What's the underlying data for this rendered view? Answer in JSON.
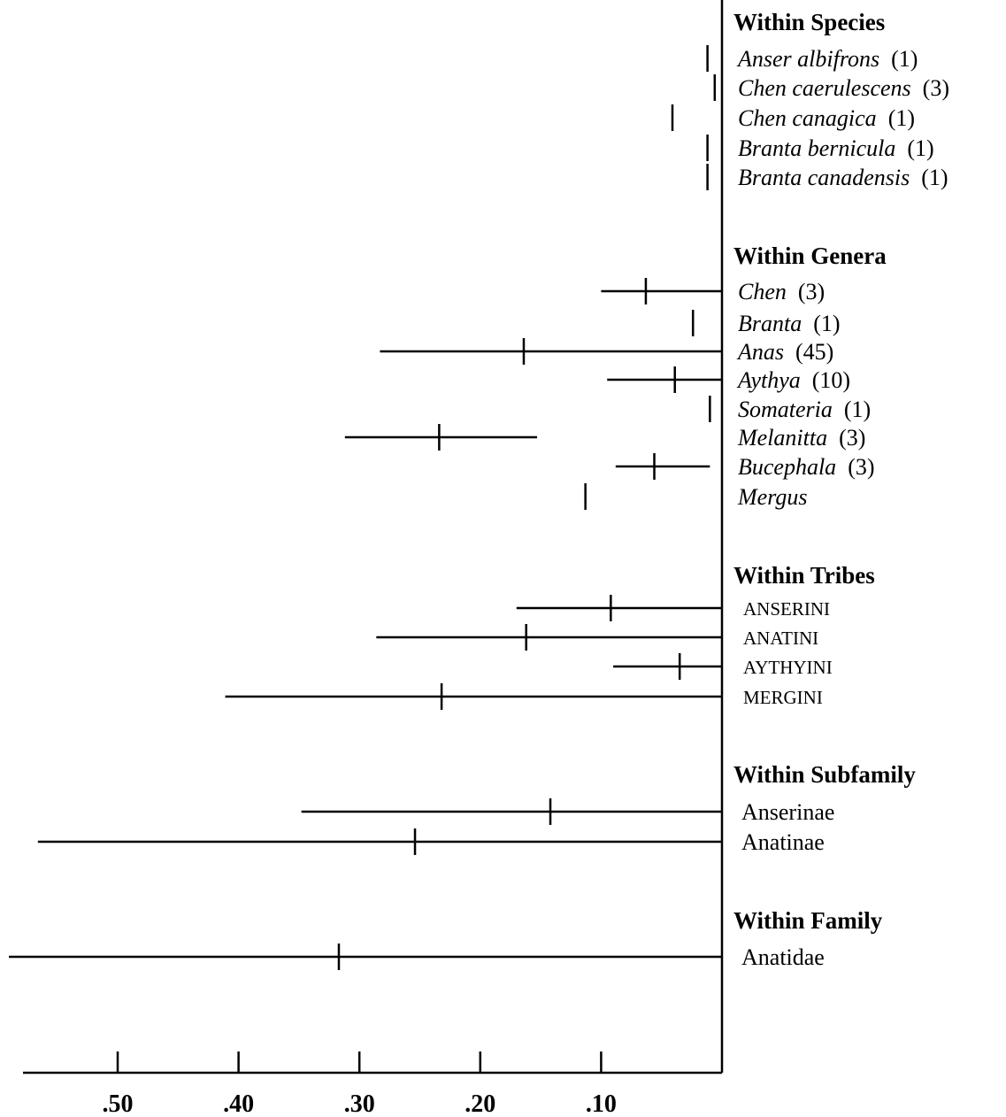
{
  "chart_data": {
    "type": "range",
    "title": "",
    "xlabel": "",
    "ylabel": "",
    "x_axis": {
      "reversed": true,
      "range": [
        0,
        0.59
      ],
      "ticks": [
        0.5,
        0.4,
        0.3,
        0.2,
        0.1
      ],
      "tick_labels": [
        ".50",
        ".40",
        ".30",
        ".20",
        ".10"
      ]
    },
    "grid": false,
    "groups": [
      {
        "heading": "Within Species",
        "rows": [
          {
            "name": "Anser albifrons",
            "count": "(1)",
            "italic": true,
            "min": 0.012,
            "max": 0.012,
            "mean": 0.012
          },
          {
            "name": "Chen caerulescens",
            "count": "(3)",
            "italic": true,
            "min": 0.006,
            "max": 0.006,
            "mean": 0.006
          },
          {
            "name": "Chen canagica",
            "count": "(1)",
            "italic": true,
            "min": 0.041,
            "max": 0.041,
            "mean": 0.041
          },
          {
            "name": "Branta bernicula",
            "count": "(1)",
            "italic": true,
            "min": 0.012,
            "max": 0.012,
            "mean": 0.012
          },
          {
            "name": "Branta canadensis",
            "count": "(1)",
            "italic": true,
            "min": 0.012,
            "max": 0.012,
            "mean": 0.012
          }
        ]
      },
      {
        "heading": "Within Genera",
        "rows": [
          {
            "name": "Chen",
            "count": "(3)",
            "italic": true,
            "min": 0.0,
            "max": 0.1,
            "mean": 0.063
          },
          {
            "name": "Branta",
            "count": "(1)",
            "italic": true,
            "min": 0.024,
            "max": 0.024,
            "mean": 0.024
          },
          {
            "name": "Anas",
            "count": "(45)",
            "italic": true,
            "min": 0.0,
            "max": 0.283,
            "mean": 0.164
          },
          {
            "name": "Aythya",
            "count": "(10)",
            "italic": true,
            "min": 0.0,
            "max": 0.095,
            "mean": 0.039
          },
          {
            "name": "Somateria",
            "count": "(1)",
            "italic": true,
            "min": 0.01,
            "max": 0.01,
            "mean": 0.01
          },
          {
            "name": "Melanitta",
            "count": "(3)",
            "italic": true,
            "min": 0.153,
            "max": 0.312,
            "mean": 0.234
          },
          {
            "name": "Bucephala",
            "count": "(3)",
            "italic": true,
            "min": 0.01,
            "max": 0.088,
            "mean": 0.056
          },
          {
            "name": "Mergus",
            "count": "",
            "italic": true,
            "min": 0.113,
            "max": 0.113,
            "mean": 0.113
          }
        ]
      },
      {
        "heading": "Within Tribes",
        "rows": [
          {
            "name": "ANSERINI",
            "count": "",
            "caps": true,
            "min": 0.0,
            "max": 0.17,
            "mean": 0.092
          },
          {
            "name": "ANATINI",
            "count": "",
            "caps": true,
            "min": 0.0,
            "max": 0.286,
            "mean": 0.162
          },
          {
            "name": "AYTHYINI",
            "count": "",
            "caps": true,
            "min": 0.0,
            "max": 0.09,
            "mean": 0.035
          },
          {
            "name": "MERGINI",
            "count": "",
            "caps": true,
            "min": 0.0,
            "max": 0.411,
            "mean": 0.232
          }
        ]
      },
      {
        "heading": "Within Subfamily",
        "rows": [
          {
            "name": "Anserinae",
            "count": "",
            "min": 0.0,
            "max": 0.348,
            "mean": 0.142
          },
          {
            "name": "Anatinae",
            "count": "",
            "min": 0.0,
            "max": 0.566,
            "mean": 0.254
          }
        ]
      },
      {
        "heading": "Within Family",
        "rows": [
          {
            "name": "Anatidae",
            "count": "",
            "min": 0.0,
            "max": 0.59,
            "mean": 0.317
          }
        ]
      }
    ]
  }
}
